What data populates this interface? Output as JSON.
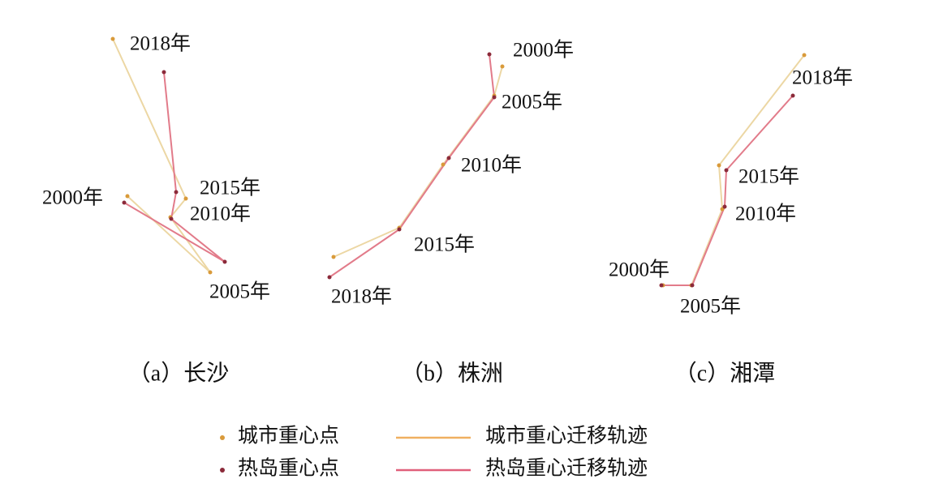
{
  "panels": [
    {
      "caption": "（a）长沙",
      "labels": [
        "2018年",
        "2015年",
        "2000年",
        "2010年",
        "2005年"
      ]
    },
    {
      "caption": "（b）株洲",
      "labels": [
        "2000年",
        "2005年",
        "2010年",
        "2015年",
        "2018年"
      ]
    },
    {
      "caption": "（c）湘潭",
      "labels": [
        "2018年",
        "2015年",
        "2010年",
        "2000年",
        "2005年"
      ]
    }
  ],
  "legend": [
    "城市重心点",
    "热岛重心点",
    "城市重心迁移轨迹",
    "热岛重心迁移轨迹"
  ]
}
